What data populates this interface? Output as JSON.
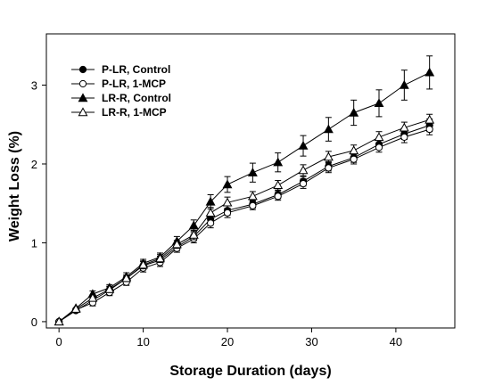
{
  "chart_data": {
    "type": "line",
    "title": "",
    "xlabel": "Storage Duration (days)",
    "ylabel": "Weight Loss (%)",
    "xlim": [
      -1.5,
      47
    ],
    "ylim": [
      -0.08,
      3.65
    ],
    "xticks": [
      0,
      10,
      20,
      30,
      40
    ],
    "yticks": [
      0,
      1,
      2,
      3
    ],
    "xtick_labels": [
      "0",
      "10",
      "20",
      "30",
      "40"
    ],
    "ytick_labels": [
      "0",
      "1",
      "2",
      "3"
    ],
    "grid": false,
    "legend_position": "top-left",
    "x": [
      0,
      2,
      4,
      6,
      8,
      10,
      12,
      14,
      16,
      18,
      20,
      23,
      26,
      29,
      32,
      35,
      38,
      41,
      44
    ],
    "series": [
      {
        "name": "P-LR, Control",
        "marker": "filled-circle",
        "values": [
          0.0,
          0.14,
          0.27,
          0.4,
          0.55,
          0.71,
          0.78,
          0.95,
          1.08,
          1.3,
          1.41,
          1.49,
          1.61,
          1.78,
          1.97,
          2.08,
          2.25,
          2.38,
          2.49
        ],
        "errors": [
          0.02,
          0.03,
          0.04,
          0.04,
          0.04,
          0.05,
          0.05,
          0.05,
          0.05,
          0.06,
          0.06,
          0.05,
          0.05,
          0.06,
          0.06,
          0.06,
          0.06,
          0.07,
          0.08
        ]
      },
      {
        "name": "P-LR, 1-MCP",
        "marker": "open-circle",
        "values": [
          0.0,
          0.15,
          0.24,
          0.37,
          0.5,
          0.68,
          0.75,
          0.93,
          1.05,
          1.25,
          1.38,
          1.47,
          1.59,
          1.75,
          1.95,
          2.06,
          2.21,
          2.34,
          2.44
        ],
        "errors": [
          0.02,
          0.03,
          0.04,
          0.04,
          0.04,
          0.05,
          0.05,
          0.05,
          0.05,
          0.06,
          0.06,
          0.05,
          0.05,
          0.06,
          0.06,
          0.06,
          0.06,
          0.07,
          0.07
        ]
      },
      {
        "name": "LR-R, Control",
        "marker": "filled-triangle",
        "values": [
          0.0,
          0.17,
          0.35,
          0.43,
          0.57,
          0.74,
          0.82,
          1.02,
          1.22,
          1.52,
          1.74,
          1.89,
          2.02,
          2.23,
          2.44,
          2.65,
          2.77,
          3.0,
          3.16
        ],
        "errors": [
          0.02,
          0.03,
          0.04,
          0.04,
          0.05,
          0.05,
          0.05,
          0.06,
          0.07,
          0.09,
          0.1,
          0.12,
          0.12,
          0.13,
          0.15,
          0.16,
          0.17,
          0.19,
          0.21
        ]
      },
      {
        "name": "LR-R, 1-MCP",
        "marker": "open-triangle",
        "values": [
          0.0,
          0.16,
          0.3,
          0.41,
          0.55,
          0.72,
          0.8,
          0.98,
          1.1,
          1.38,
          1.51,
          1.59,
          1.73,
          1.92,
          2.09,
          2.17,
          2.34,
          2.46,
          2.56
        ],
        "errors": [
          0.02,
          0.03,
          0.04,
          0.04,
          0.04,
          0.05,
          0.05,
          0.05,
          0.06,
          0.07,
          0.07,
          0.06,
          0.06,
          0.07,
          0.07,
          0.07,
          0.07,
          0.07,
          0.07
        ]
      }
    ]
  }
}
